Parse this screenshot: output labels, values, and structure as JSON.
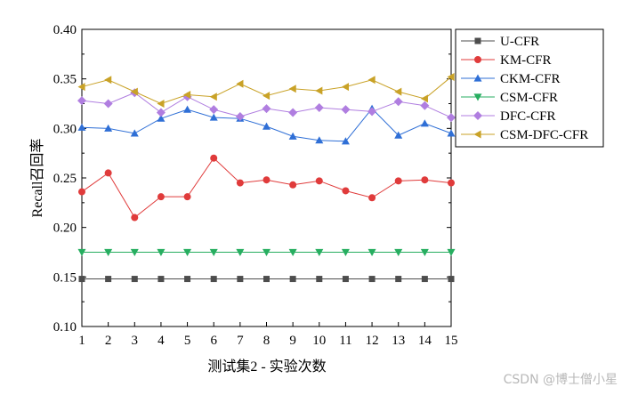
{
  "chart_data": {
    "type": "line",
    "xlabel": "测试集2 - 实验次数",
    "ylabel": "Recall召回率",
    "xlim": [
      1,
      15
    ],
    "ylim": [
      0.1,
      0.4
    ],
    "x": [
      1,
      2,
      3,
      4,
      5,
      6,
      7,
      8,
      9,
      10,
      11,
      12,
      13,
      14,
      15
    ],
    "x_tick_labels": [
      "1",
      "2",
      "3",
      "4",
      "5",
      "6",
      "7",
      "8",
      "9",
      "10",
      "11",
      "12",
      "13",
      "14",
      "15"
    ],
    "y_ticks": [
      0.1,
      0.15,
      0.2,
      0.25,
      0.3,
      0.35,
      0.4
    ],
    "y_tick_labels": [
      "0.10",
      "0.15",
      "0.20",
      "0.25",
      "0.30",
      "0.35",
      "0.40"
    ],
    "grid": false,
    "legend_position": "right-top",
    "series": [
      {
        "name": "U-CFR",
        "color": "#4d4d4d",
        "marker": "square",
        "values": [
          0.148,
          0.148,
          0.148,
          0.148,
          0.148,
          0.148,
          0.148,
          0.148,
          0.148,
          0.148,
          0.148,
          0.148,
          0.148,
          0.148,
          0.148
        ]
      },
      {
        "name": "KM-CFR",
        "color": "#e03b3b",
        "marker": "circle",
        "values": [
          0.236,
          0.255,
          0.21,
          0.231,
          0.231,
          0.27,
          0.245,
          0.248,
          0.243,
          0.247,
          0.237,
          0.23,
          0.247,
          0.248,
          0.245
        ]
      },
      {
        "name": "CKM-CFR",
        "color": "#2f6fd6",
        "marker": "triangle-up",
        "values": [
          0.301,
          0.3,
          0.295,
          0.31,
          0.319,
          0.311,
          0.31,
          0.302,
          0.292,
          0.288,
          0.287,
          0.32,
          0.293,
          0.305,
          0.295
        ]
      },
      {
        "name": "CSM-CFR",
        "color": "#27ae60",
        "marker": "triangle-down",
        "values": [
          0.175,
          0.175,
          0.175,
          0.175,
          0.175,
          0.175,
          0.175,
          0.175,
          0.175,
          0.175,
          0.175,
          0.175,
          0.175,
          0.175,
          0.175
        ]
      },
      {
        "name": "DFC-CFR",
        "color": "#b07ee0",
        "marker": "diamond",
        "values": [
          0.328,
          0.325,
          0.336,
          0.316,
          0.332,
          0.319,
          0.312,
          0.32,
          0.316,
          0.321,
          0.319,
          0.317,
          0.327,
          0.323,
          0.311
        ]
      },
      {
        "name": "CSM-DFC-CFR",
        "color": "#c9a227",
        "marker": "triangle-left",
        "values": [
          0.342,
          0.349,
          0.337,
          0.325,
          0.334,
          0.332,
          0.345,
          0.333,
          0.34,
          0.338,
          0.342,
          0.349,
          0.337,
          0.33,
          0.352
        ]
      }
    ]
  },
  "watermark": "CSDN @博士僧小星"
}
